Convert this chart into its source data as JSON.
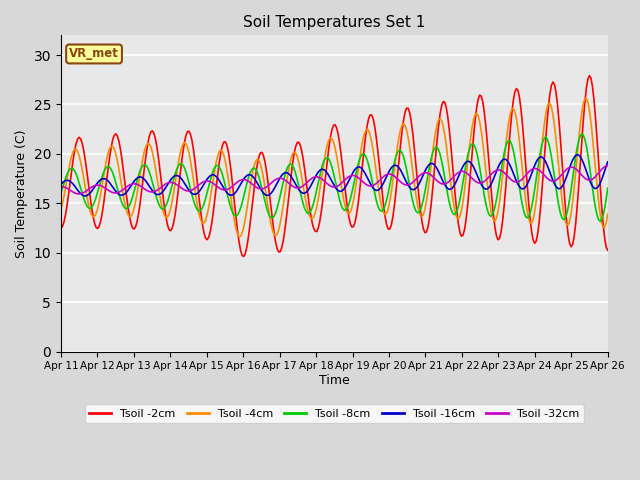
{
  "title": "Soil Temperatures Set 1",
  "xlabel": "Time",
  "ylabel": "Soil Temperature (C)",
  "ylim": [
    0,
    32
  ],
  "yticks": [
    0,
    5,
    10,
    15,
    20,
    25,
    30
  ],
  "date_labels": [
    "Apr 11",
    "Apr 12",
    "Apr 13",
    "Apr 14",
    "Apr 15",
    "Apr 16",
    "Apr 17",
    "Apr 18",
    "Apr 19",
    "Apr 20",
    "Apr 21",
    "Apr 22",
    "Apr 23",
    "Apr 24",
    "Apr 25",
    "Apr 26"
  ],
  "colors": {
    "Tsoil -2cm": "#ff0000",
    "Tsoil -4cm": "#ff8c00",
    "Tsoil -8cm": "#00cc00",
    "Tsoil -16cm": "#0000cc",
    "Tsoil -32cm": "#cc00cc"
  },
  "annotation_text": "VR_met",
  "annotation_color": "#8B4513",
  "annotation_bg": "#ffff99",
  "plot_bg": "#e8e8e8",
  "fig_bg": "#d8d8d8",
  "linewidth": 1.2
}
